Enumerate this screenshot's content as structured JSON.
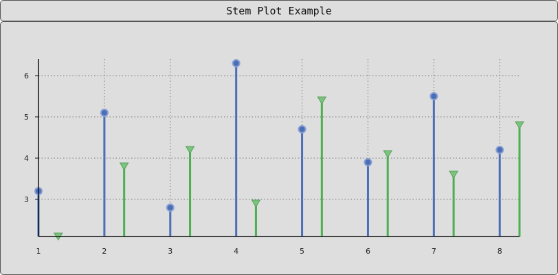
{
  "window": {
    "title": "Stem Plot Example"
  },
  "chart_data": {
    "type": "stem",
    "title": "Stem Plot Example",
    "x_ticks": [
      "1",
      "2",
      "3",
      "4",
      "5",
      "6",
      "7",
      "8"
    ],
    "y_ticks": [
      "3",
      "4",
      "5",
      "6"
    ],
    "xlim": [
      1,
      8.3
    ],
    "ylim": [
      2.1,
      6.4
    ],
    "grid": true,
    "series": [
      {
        "marker": "circle",
        "color": "#4a6fb5",
        "x": [
          1,
          2,
          3,
          4,
          5,
          6,
          7,
          8
        ],
        "values": [
          3.2,
          5.1,
          2.8,
          6.3,
          4.7,
          3.9,
          5.5,
          4.2
        ]
      },
      {
        "marker": "triangle-down",
        "color": "#4caf50",
        "x": [
          1.3,
          2.3,
          3.3,
          4.3,
          5.3,
          6.3,
          7.3,
          8.3
        ],
        "values": [
          2.1,
          3.8,
          4.2,
          2.9,
          5.4,
          4.1,
          3.6,
          4.8
        ]
      }
    ]
  }
}
